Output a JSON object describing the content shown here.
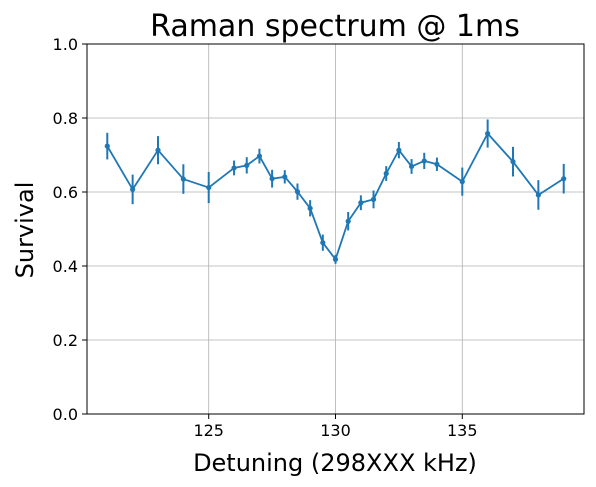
{
  "chart_data": {
    "type": "line",
    "title": "Raman spectrum @ 1ms",
    "xlabel": "Detuning (298XXX kHz)",
    "ylabel": "Survival",
    "xlim": [
      120.2,
      139.8
    ],
    "ylim": [
      0.0,
      1.0
    ],
    "xticks": [
      125,
      130,
      135
    ],
    "yticks": [
      0.0,
      0.2,
      0.4,
      0.6,
      0.8,
      1.0
    ],
    "xtick_labels": [
      "125",
      "130",
      "135"
    ],
    "ytick_labels": [
      "0.0",
      "0.2",
      "0.4",
      "0.6",
      "0.8",
      "1.0"
    ],
    "grid": true,
    "legend": false,
    "color": "#1f77b4",
    "series": [
      {
        "x": [
          121,
          122,
          123,
          124,
          125,
          126,
          126.5,
          127,
          127.5,
          128,
          128.5,
          129,
          129.5,
          130,
          130.5,
          131,
          131.5,
          132,
          132.5,
          133,
          133.5,
          134,
          135,
          136,
          137,
          138,
          139
        ],
        "y": [
          0.724,
          0.607,
          0.713,
          0.635,
          0.612,
          0.665,
          0.672,
          0.697,
          0.636,
          0.641,
          0.601,
          0.556,
          0.463,
          0.418,
          0.521,
          0.571,
          0.58,
          0.65,
          0.713,
          0.669,
          0.684,
          0.675,
          0.628,
          0.758,
          0.682,
          0.592,
          0.636
        ],
        "yerr": [
          0.036,
          0.04,
          0.038,
          0.04,
          0.042,
          0.02,
          0.022,
          0.02,
          0.024,
          0.018,
          0.022,
          0.022,
          0.022,
          0.012,
          0.025,
          0.02,
          0.024,
          0.02,
          0.022,
          0.02,
          0.022,
          0.018,
          0.038,
          0.038,
          0.04,
          0.04,
          0.04
        ]
      }
    ]
  }
}
